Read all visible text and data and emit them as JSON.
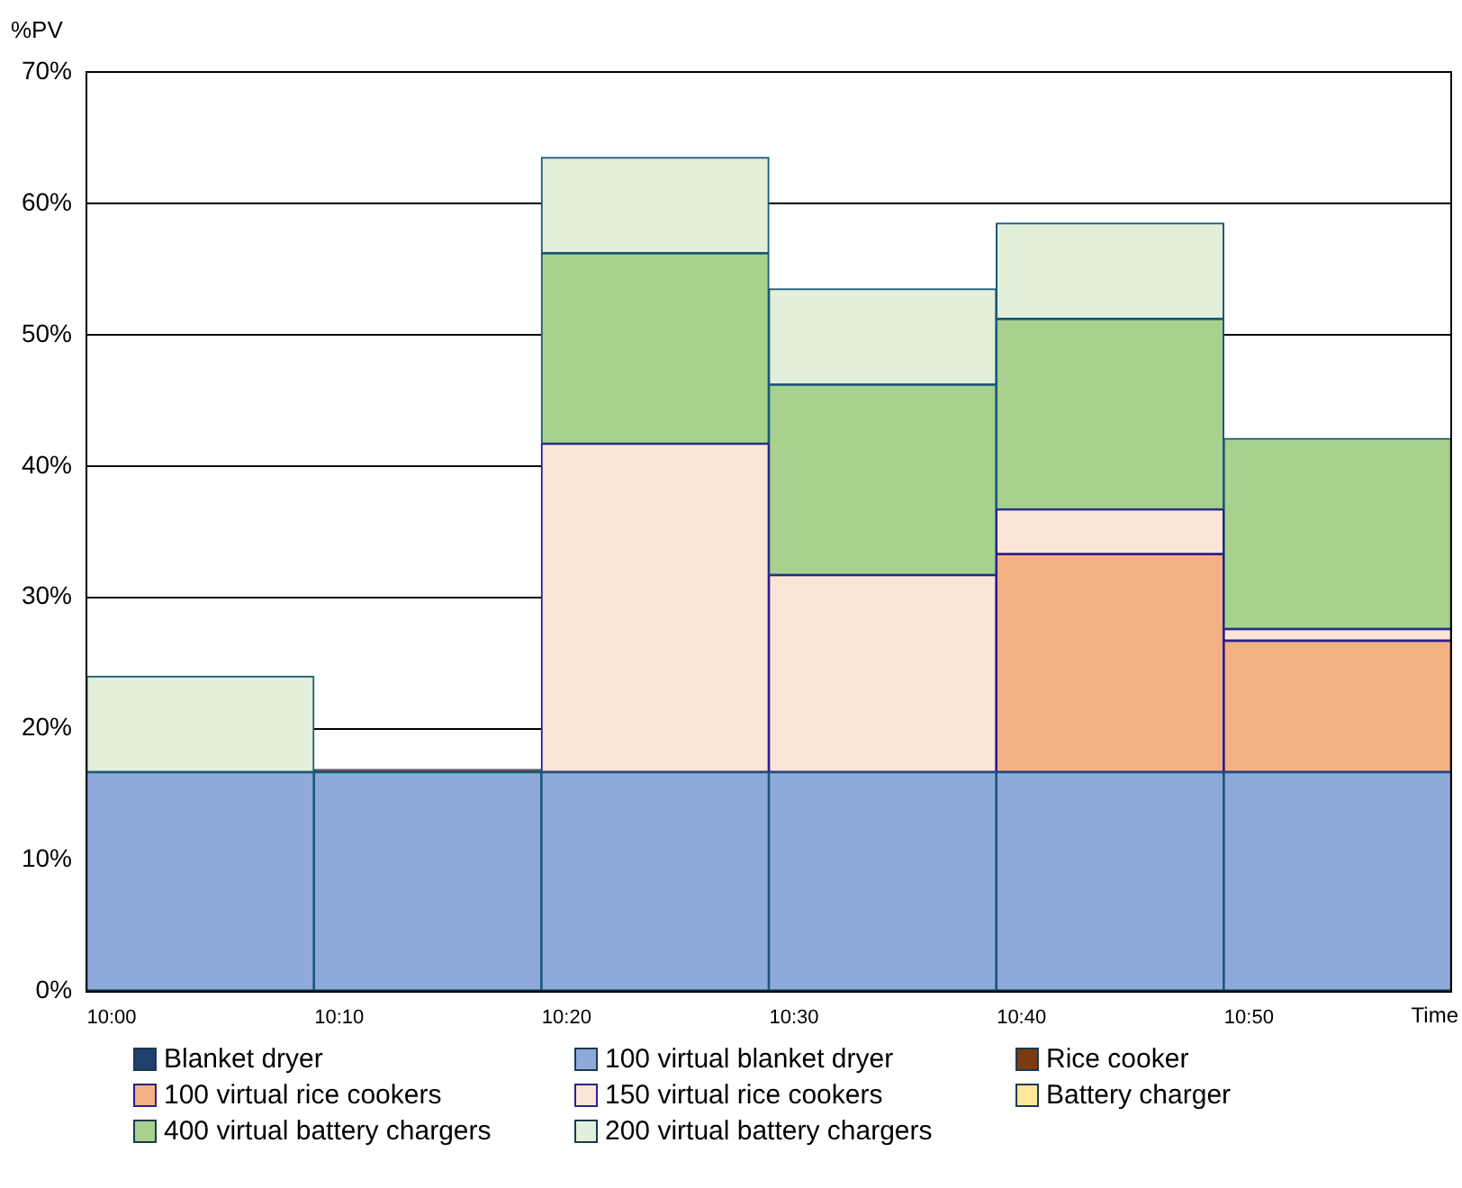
{
  "chart_data": {
    "type": "bar",
    "stacked": true,
    "xlabel": "Time",
    "ylabel": "%PV",
    "categories": [
      "10:00",
      "10:10",
      "10:20",
      "10:30",
      "10:40",
      "10:50"
    ],
    "ylim": [
      0,
      70
    ],
    "yticks": [
      {
        "value": 0,
        "label": "0%"
      },
      {
        "value": 10,
        "label": "10%"
      },
      {
        "value": 20,
        "label": "20%"
      },
      {
        "value": 30,
        "label": "30%"
      },
      {
        "value": 40,
        "label": "40%"
      },
      {
        "value": 50,
        "label": "50%"
      },
      {
        "value": 60,
        "label": "60%"
      },
      {
        "value": 70,
        "label": "70%"
      }
    ],
    "grid": "y",
    "legend": "bottom",
    "series": [
      {
        "name": "Blanket dryer",
        "color": "#1f3f6e",
        "values": [
          null,
          null,
          null,
          null,
          null,
          null
        ]
      },
      {
        "name": "100 virtual blanket dryer",
        "color": "#8eaadb",
        "values": [
          16.7,
          16.7,
          16.7,
          16.7,
          16.7,
          16.7
        ]
      },
      {
        "name": "Rice cooker",
        "color": "#7b3a12",
        "values": [
          null,
          0.2,
          null,
          null,
          null,
          null
        ]
      },
      {
        "name": "100 virtual rice cookers",
        "color": "#f4b183",
        "values": [
          null,
          null,
          null,
          null,
          16.6,
          10.0
        ]
      },
      {
        "name": "150 virtual rice cookers",
        "color": "#fbe5d6",
        "values": [
          null,
          null,
          25.0,
          15.0,
          3.4,
          0.9
        ]
      },
      {
        "name": "Battery charger",
        "color": "#ffe699",
        "values": [
          null,
          null,
          null,
          null,
          null,
          null
        ]
      },
      {
        "name": "400 virtual battery chargers",
        "color": "#a9d18e",
        "values": [
          null,
          null,
          14.5,
          14.5,
          14.5,
          14.5
        ]
      },
      {
        "name": "200 virtual battery chargers",
        "color": "#e2efda",
        "values": [
          7.3,
          null,
          7.3,
          7.3,
          7.3,
          null
        ]
      }
    ]
  }
}
